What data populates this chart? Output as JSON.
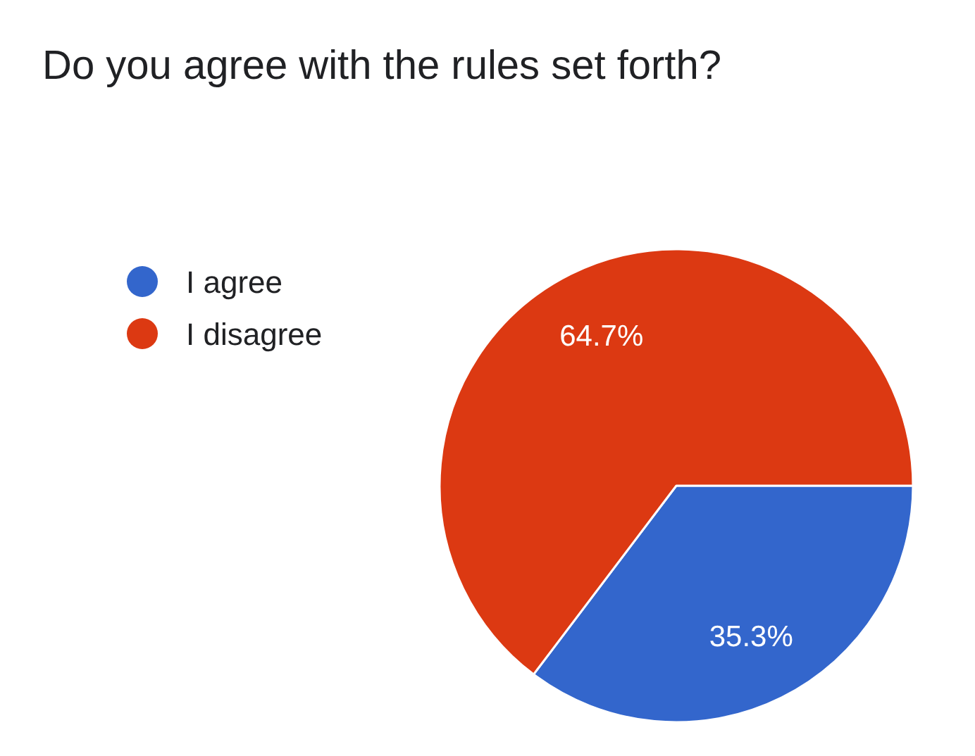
{
  "chart_data": {
    "type": "pie",
    "title": "Do you agree with the rules set forth?",
    "categories": [
      "I agree",
      "I disagree"
    ],
    "values": [
      35.3,
      64.7
    ],
    "colors": [
      "#3366cc",
      "#dc3912"
    ],
    "value_labels": [
      "35.3%",
      "64.7%"
    ],
    "legend": "left"
  }
}
